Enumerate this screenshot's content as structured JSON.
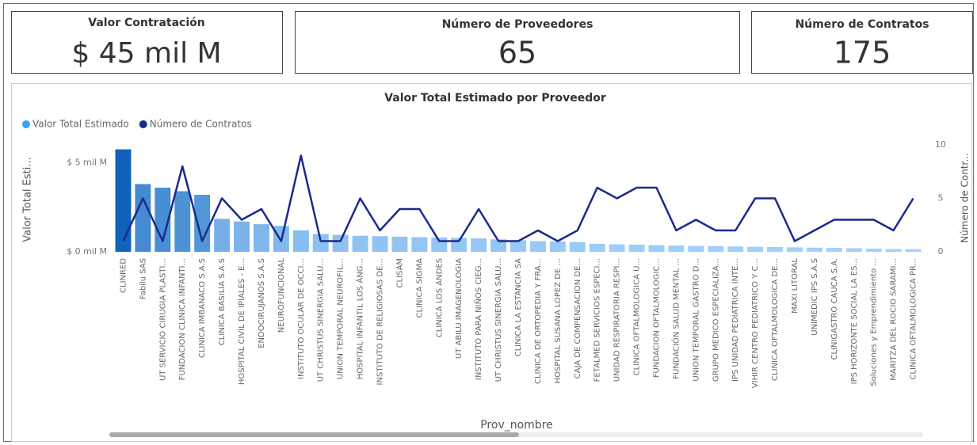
{
  "cards": [
    {
      "title": "Valor Contratación",
      "value": "$ 45 mil M"
    },
    {
      "title": "Número de Proveedores",
      "value": 65
    },
    {
      "title": "Número de Contratos",
      "value": 175
    }
  ],
  "chart_data": {
    "type": "bar-line",
    "title": "Valor Total Estimado por Proveedor",
    "x_label": "Prov_nombre",
    "y_label": "Valor Total Esti...",
    "y2_label": "Número de Contr...",
    "categories": [
      "CLINRED",
      "Fabilu SAS",
      "UT SERVICIO CIRUGIA PLASTI...",
      "FUNDACION CLINICA INFANTI...",
      "CLINICA IMBANACO S.A.S",
      "CLINICA BASILIA S.A.S",
      "HOSPITAL CIVIL DE IPIALES - E...",
      "ENDOCIRUJANOS S.A.S",
      "NEUROFUNCIONAL",
      "INSTITUTO OCULAR DE OCCI...",
      "UT CHRISTUS SINERGIA SALU...",
      "UNION TEMPORAL NEUROFIL...",
      "HOSPITAL INFANTIL LOS ÁNG...",
      "INSTITUTO DE RELIGIOSAS DE...",
      "CLISAM",
      "CLINICA SIGMA",
      "CLINICA LOS ANDES",
      "UT ABILU IMAGENOLOGIA",
      "INSTITUTO PARA NIÑOS CIEG...",
      "UT CHRISTUS SINERGIA SALU...",
      "CLINICA LA ESTANCIA SA",
      "CLINICA DE ORTOPEDIA Y FRA...",
      "HOSPITAL SUSANA LOPEZ DE ...",
      "CAJA DE COMPENSACION DE...",
      "FETALMED SERVICIOS ESPECI...",
      "UNIDAD RESPIRATORIA RESPI...",
      "CLINICA OFTALMOLOGICA U...",
      "FUNDACION OFTALMOLOGIC...",
      "FUNDACIÓN SALUD MENTAL ...",
      "UNION TEMPORAL GASTRO D...",
      "GRUPO MEDICO ESPECIALIZA...",
      "IPS UNIDAD PEDIATRICA INTE...",
      "VIHIR CENTRO PEDIATRICO Y C...",
      "CLINICA OFTALMOLOGICA DE...",
      "MAXI LITORAL",
      "UNIMEDIC IPS S.A.S",
      "CLINIGASTRO CAUCA S.A.",
      "IPS HORIZONTE SOCIAL LA ES...",
      "Soluciones y Emprendimiento ...",
      "MARITZA DEL ROCIO SARAMI...",
      "CLINICA OFTALMOLOGICA PR..."
    ],
    "series": [
      {
        "name": "Valor Total Estimado",
        "color": "#3aa0ff",
        "gradient": [
          "#a8d5ff",
          "#0f63b8"
        ],
        "values": [
          5.75,
          3.8,
          3.6,
          3.4,
          3.2,
          1.85,
          1.7,
          1.55,
          1.45,
          1.2,
          1.0,
          0.95,
          0.9,
          0.88,
          0.85,
          0.82,
          0.8,
          0.78,
          0.75,
          0.7,
          0.65,
          0.6,
          0.58,
          0.55,
          0.45,
          0.42,
          0.4,
          0.38,
          0.35,
          0.33,
          0.32,
          0.3,
          0.28,
          0.27,
          0.25,
          0.23,
          0.22,
          0.2,
          0.18,
          0.16,
          0.15
        ]
      },
      {
        "name": "Número de Contratos",
        "color": "#1a2a8c",
        "axis": "y2",
        "values": [
          1,
          5,
          1,
          8,
          1,
          5,
          3,
          4,
          1,
          9,
          1,
          1,
          5,
          2,
          4,
          4,
          1,
          1,
          4,
          1,
          1,
          2,
          1,
          2,
          6,
          5,
          6,
          6,
          2,
          3,
          2,
          2,
          5,
          5,
          1,
          2,
          3,
          3,
          3,
          2,
          5
        ]
      }
    ],
    "ylim": [
      0,
      6
    ],
    "yticks": [
      {
        "value": 0,
        "label": "$ 0 mil M"
      },
      {
        "value": 5,
        "label": "$ 5 mil M"
      }
    ],
    "y2lim": [
      0,
      10
    ],
    "y2ticks": [
      0,
      5,
      10
    ]
  }
}
